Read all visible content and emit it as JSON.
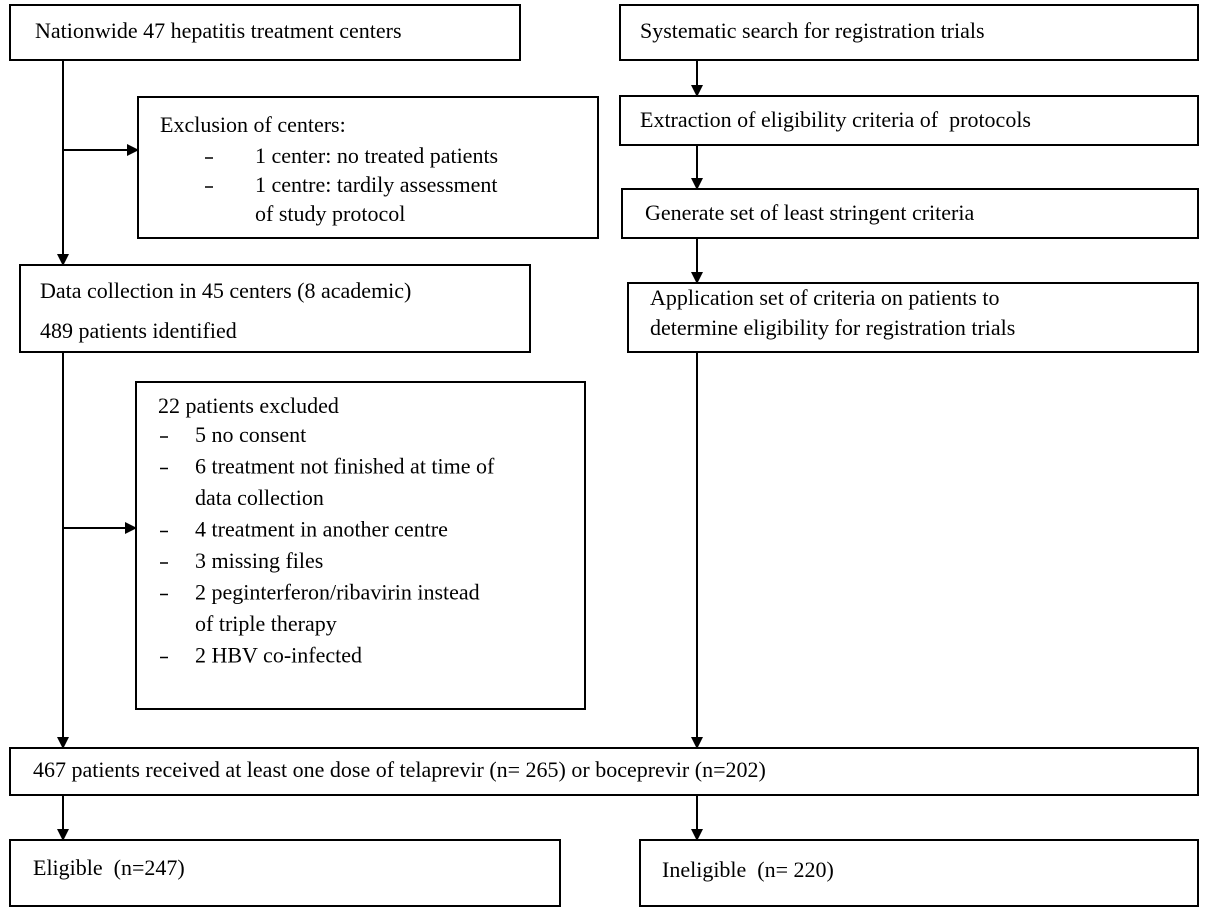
{
  "nodes": [
    {
      "label": "Nationwide 47 hepatitis treatment centers"
    },
    {
      "label": "Systematic search for registration trials"
    },
    {
      "title": "Exclusion of centers:",
      "items": [
        [
          "1 center: no treated patients"
        ],
        [
          "1 centre: tardily assessment",
          "of study protocol"
        ]
      ]
    },
    {
      "label": "Extraction of eligibility criteria of  protocols"
    },
    {
      "label": "Generate set of least stringent criteria"
    },
    {
      "lines": [
        "Data collection in 45 centers (8 academic)",
        "489 patients identified"
      ]
    },
    {
      "lines": [
        "Application set of criteria on patients to",
        "determine eligibility for registration trials"
      ]
    },
    {
      "title": "22 patients excluded",
      "items": [
        [
          "5 no consent"
        ],
        [
          "6 treatment not finished at time of",
          "data collection"
        ],
        [
          "4 treatment in another centre"
        ],
        [
          "3 missing files"
        ],
        [
          "2 peginterferon/ribavirin instead",
          "of triple therapy"
        ],
        [
          "2 HBV co-infected"
        ]
      ]
    },
    {
      "label": "467 patients received at least one dose of telaprevir (n= 265) or boceprevir (n=202)"
    },
    {
      "label": "Eligible  (n=247)"
    },
    {
      "label": "Ineligible  (n= 220)"
    }
  ]
}
